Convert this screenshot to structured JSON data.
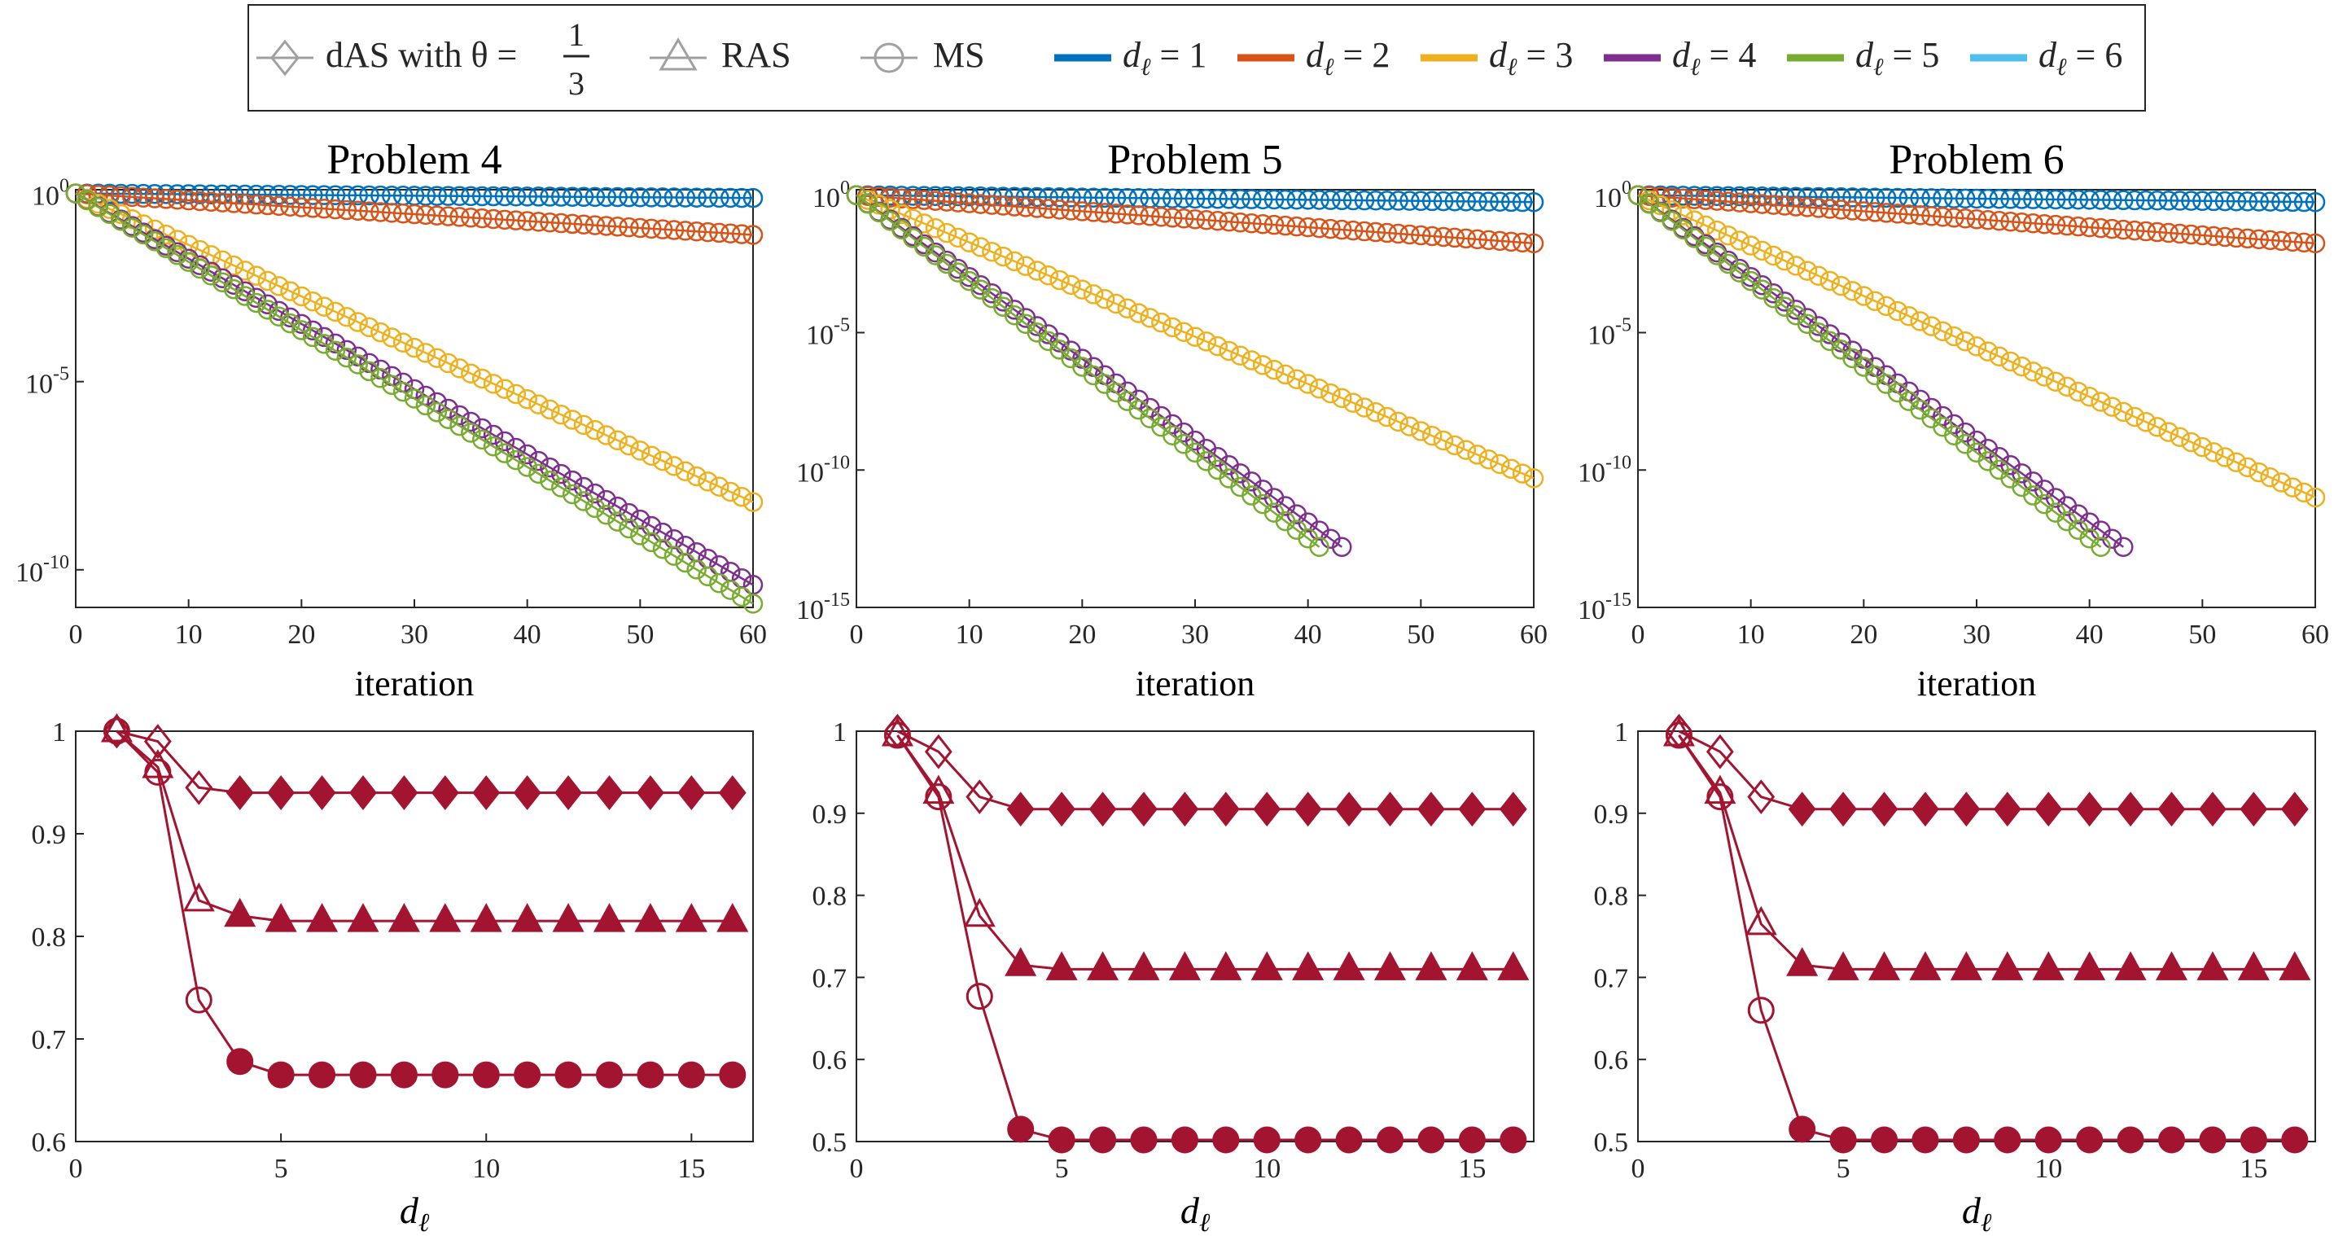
{
  "legend": {
    "das_label": "dAS with θ =",
    "theta_num": "1",
    "theta_den": "3",
    "ras_label": "RAS",
    "ms_label": "MS",
    "d_entries": [
      {
        "var": "d",
        "sub": "ℓ",
        "eq": "= 1",
        "color": "#0072BD"
      },
      {
        "var": "d",
        "sub": "ℓ",
        "eq": "= 2",
        "color": "#D95319"
      },
      {
        "var": "d",
        "sub": "ℓ",
        "eq": "= 3",
        "color": "#EDB120"
      },
      {
        "var": "d",
        "sub": "ℓ",
        "eq": "= 4",
        "color": "#7E2F8E"
      },
      {
        "var": "d",
        "sub": "ℓ",
        "eq": "= 5",
        "color": "#77AC30"
      },
      {
        "var": "d",
        "sub": "ℓ",
        "eq": "= 6",
        "color": "#4DBEEE"
      }
    ]
  },
  "colors": {
    "d1": "#0072BD",
    "d2": "#D95319",
    "d3": "#EDB120",
    "d4": "#7E2F8E",
    "d5": "#77AC30",
    "d6": "#4DBEEE",
    "bottom": "#A2142F",
    "legend_marker": "#A0A0A0",
    "axis": "#262626",
    "frame": "#262626"
  },
  "chart_data": [
    {
      "id": "p4top",
      "type": "line",
      "title": "Problem 4",
      "xlabel": "iteration",
      "ylabel": "",
      "yscale": "log",
      "xlim": [
        0,
        60
      ],
      "ylim_exp": [
        -11,
        0.1
      ],
      "xticks": [
        "0",
        "10",
        "20",
        "30",
        "40",
        "50",
        "60"
      ],
      "ytick_labels": [
        {
          "base": "10",
          "exp": "0",
          "value": 1
        },
        {
          "base": "10",
          "exp": "-5",
          "value": 1e-05
        },
        {
          "base": "10",
          "exp": "-10",
          "value": 1e-10
        }
      ],
      "series": [
        {
          "name": "dℓ = 1",
          "color": "#0072BD",
          "x_start": 0,
          "x_end": 60,
          "log10_start": 0,
          "log10_end": -0.12
        },
        {
          "name": "dℓ = 2",
          "color": "#D95319",
          "x_start": 0,
          "x_end": 60,
          "log10_start": 0,
          "log10_end": -1.1
        },
        {
          "name": "dℓ = 3",
          "color": "#EDB120",
          "x_start": 0,
          "x_end": 60,
          "log10_start": 0,
          "log10_end": -8.2
        },
        {
          "name": "dℓ = 4",
          "color": "#7E2F8E",
          "x_start": 0,
          "x_end": 60,
          "log10_start": 0,
          "log10_end": -10.4
        },
        {
          "name": "dℓ = 5",
          "color": "#77AC30",
          "x_start": 0,
          "x_end": 60,
          "log10_start": 0,
          "log10_end": -10.9
        }
      ]
    },
    {
      "id": "p5top",
      "type": "line",
      "title": "Problem 5",
      "xlabel": "iteration",
      "ylabel": "",
      "yscale": "log",
      "xlim": [
        0,
        60
      ],
      "ylim_exp": [
        -15,
        0.2
      ],
      "xticks": [
        "0",
        "10",
        "20",
        "30",
        "40",
        "50",
        "60"
      ],
      "ytick_labels": [
        {
          "base": "10",
          "exp": "0",
          "value": 1
        },
        {
          "base": "10",
          "exp": "-5",
          "value": 1e-05
        },
        {
          "base": "10",
          "exp": "-10",
          "value": 1e-10
        },
        {
          "base": "10",
          "exp": "-15",
          "value": 1e-15
        }
      ],
      "series": [
        {
          "name": "dℓ = 1",
          "color": "#0072BD",
          "x_start": 0,
          "x_end": 60,
          "log10_start": 0,
          "log10_end": -0.25
        },
        {
          "name": "dℓ = 2",
          "color": "#D95319",
          "x_start": 0,
          "x_end": 60,
          "log10_start": 0,
          "log10_end": -1.75
        },
        {
          "name": "dℓ = 3",
          "color": "#EDB120",
          "x_start": 0,
          "x_end": 60,
          "log10_start": 0,
          "log10_end": -10.3
        },
        {
          "name": "dℓ = 4",
          "color": "#7E2F8E",
          "x_start": 0,
          "x_end": 43,
          "log10_start": 0,
          "log10_end": -12.8
        },
        {
          "name": "dℓ = 5",
          "color": "#77AC30",
          "x_start": 0,
          "x_end": 41,
          "log10_start": 0,
          "log10_end": -12.8
        }
      ]
    },
    {
      "id": "p6top",
      "type": "line",
      "title": "Problem 6",
      "xlabel": "iteration",
      "ylabel": "",
      "yscale": "log",
      "xlim": [
        0,
        60
      ],
      "ylim_exp": [
        -15,
        0.2
      ],
      "xticks": [
        "0",
        "10",
        "20",
        "30",
        "40",
        "50",
        "60"
      ],
      "ytick_labels": [
        {
          "base": "10",
          "exp": "0",
          "value": 1
        },
        {
          "base": "10",
          "exp": "-5",
          "value": 1e-05
        },
        {
          "base": "10",
          "exp": "-10",
          "value": 1e-10
        },
        {
          "base": "10",
          "exp": "-15",
          "value": 1e-15
        }
      ],
      "series": [
        {
          "name": "dℓ = 1",
          "color": "#0072BD",
          "x_start": 0,
          "x_end": 60,
          "log10_start": 0,
          "log10_end": -0.25
        },
        {
          "name": "dℓ = 2",
          "color": "#D95319",
          "x_start": 0,
          "x_end": 60,
          "log10_start": 0,
          "log10_end": -1.75
        },
        {
          "name": "dℓ = 3",
          "color": "#EDB120",
          "x_start": 0,
          "x_end": 60,
          "log10_start": 0,
          "log10_end": -11
        },
        {
          "name": "dℓ = 4",
          "color": "#7E2F8E",
          "x_start": 0,
          "x_end": 43,
          "log10_start": 0,
          "log10_end": -12.8
        },
        {
          "name": "dℓ = 5",
          "color": "#77AC30",
          "x_start": 0,
          "x_end": 41,
          "log10_start": 0,
          "log10_end": -12.8
        }
      ]
    },
    {
      "id": "p4bot",
      "type": "line",
      "title": "",
      "xlabel_var": "d",
      "xlabel_sub": "ℓ",
      "ylabel": "",
      "yscale": "linear",
      "xlim": [
        0,
        16.5
      ],
      "ylim": [
        0.6,
        1.0
      ],
      "xticks": [
        "0",
        "5",
        "10",
        "15"
      ],
      "xtick_values": [
        0,
        5,
        10,
        15
      ],
      "yticks": [
        "0.6",
        "0.7",
        "0.8",
        "0.9",
        "1"
      ],
      "ytick_values": [
        0.6,
        0.7,
        0.8,
        0.9,
        1.0
      ],
      "x": [
        1,
        2,
        3,
        4,
        5,
        6,
        7,
        8,
        9,
        10,
        11,
        12,
        13,
        14,
        15,
        16
      ],
      "series": [
        {
          "name": "dAS",
          "marker": "diamond",
          "open_upto": 3,
          "values": [
            1.0,
            0.99,
            0.945,
            0.94,
            0.94,
            0.94,
            0.94,
            0.94,
            0.94,
            0.94,
            0.94,
            0.94,
            0.94,
            0.94,
            0.94,
            0.94
          ]
        },
        {
          "name": "RAS",
          "marker": "triangle",
          "open_upto": 3,
          "values": [
            1.0,
            0.965,
            0.835,
            0.82,
            0.815,
            0.815,
            0.815,
            0.815,
            0.815,
            0.815,
            0.815,
            0.815,
            0.815,
            0.815,
            0.815,
            0.815
          ]
        },
        {
          "name": "MS",
          "marker": "circle",
          "open_upto": 3,
          "values": [
            1.0,
            0.96,
            0.738,
            0.678,
            0.665,
            0.665,
            0.665,
            0.665,
            0.665,
            0.665,
            0.665,
            0.665,
            0.665,
            0.665,
            0.665,
            0.665
          ]
        }
      ]
    },
    {
      "id": "p5bot",
      "type": "line",
      "title": "",
      "xlabel_var": "d",
      "xlabel_sub": "ℓ",
      "ylabel": "",
      "yscale": "linear",
      "xlim": [
        0,
        16.5
      ],
      "ylim": [
        0.5,
        1.0
      ],
      "xticks": [
        "0",
        "5",
        "10",
        "15"
      ],
      "xtick_values": [
        0,
        5,
        10,
        15
      ],
      "yticks": [
        "0.5",
        "0.6",
        "0.7",
        "0.8",
        "0.9",
        "1"
      ],
      "ytick_values": [
        0.5,
        0.6,
        0.7,
        0.8,
        0.9,
        1.0
      ],
      "x": [
        1,
        2,
        3,
        4,
        5,
        6,
        7,
        8,
        9,
        10,
        11,
        12,
        13,
        14,
        15,
        16
      ],
      "series": [
        {
          "name": "dAS",
          "marker": "diamond",
          "open_upto": 3,
          "values": [
            1.0,
            0.975,
            0.92,
            0.905,
            0.905,
            0.905,
            0.905,
            0.905,
            0.905,
            0.905,
            0.905,
            0.905,
            0.905,
            0.905,
            0.905,
            0.905
          ]
        },
        {
          "name": "RAS",
          "marker": "triangle",
          "open_upto": 3,
          "values": [
            0.995,
            0.925,
            0.775,
            0.715,
            0.71,
            0.71,
            0.71,
            0.71,
            0.71,
            0.71,
            0.71,
            0.71,
            0.71,
            0.71,
            0.71,
            0.71
          ]
        },
        {
          "name": "MS",
          "marker": "circle",
          "open_upto": 3,
          "values": [
            0.995,
            0.92,
            0.677,
            0.515,
            0.502,
            0.502,
            0.502,
            0.502,
            0.502,
            0.502,
            0.502,
            0.502,
            0.502,
            0.502,
            0.502,
            0.502
          ]
        }
      ]
    },
    {
      "id": "p6bot",
      "type": "line",
      "title": "",
      "xlabel_var": "d",
      "xlabel_sub": "ℓ",
      "ylabel": "",
      "yscale": "linear",
      "xlim": [
        0,
        16.5
      ],
      "ylim": [
        0.5,
        1.0
      ],
      "xticks": [
        "0",
        "5",
        "10",
        "15"
      ],
      "xtick_values": [
        0,
        5,
        10,
        15
      ],
      "yticks": [
        "0.5",
        "0.6",
        "0.7",
        "0.8",
        "0.9",
        "1"
      ],
      "ytick_values": [
        0.5,
        0.6,
        0.7,
        0.8,
        0.9,
        1.0
      ],
      "x": [
        1,
        2,
        3,
        4,
        5,
        6,
        7,
        8,
        9,
        10,
        11,
        12,
        13,
        14,
        15,
        16
      ],
      "series": [
        {
          "name": "dAS",
          "marker": "diamond",
          "open_upto": 3,
          "values": [
            1.0,
            0.975,
            0.92,
            0.905,
            0.905,
            0.905,
            0.905,
            0.905,
            0.905,
            0.905,
            0.905,
            0.905,
            0.905,
            0.905,
            0.905,
            0.905
          ]
        },
        {
          "name": "RAS",
          "marker": "triangle",
          "open_upto": 3,
          "values": [
            0.995,
            0.925,
            0.765,
            0.715,
            0.71,
            0.71,
            0.71,
            0.71,
            0.71,
            0.71,
            0.71,
            0.71,
            0.71,
            0.71,
            0.71,
            0.71
          ]
        },
        {
          "name": "MS",
          "marker": "circle",
          "open_upto": 3,
          "values": [
            0.995,
            0.92,
            0.66,
            0.515,
            0.502,
            0.502,
            0.502,
            0.502,
            0.502,
            0.502,
            0.502,
            0.502,
            0.502,
            0.502,
            0.502,
            0.502
          ]
        }
      ]
    }
  ]
}
